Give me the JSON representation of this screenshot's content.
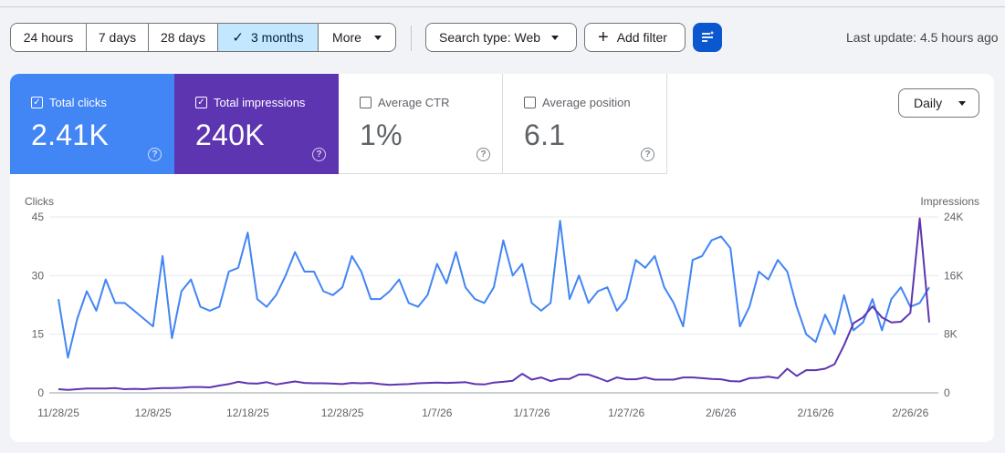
{
  "toolbar": {
    "date_ranges": [
      "24 hours",
      "7 days",
      "28 days",
      "3 months",
      "More"
    ],
    "selected_range": "3 months",
    "search_type": "Search type: Web",
    "add_filter": "Add filter",
    "filter_icon": "tune-icon",
    "last_update": "Last update: 4.5 hours ago"
  },
  "metrics": [
    {
      "label": "Total clicks",
      "value": "2.41K",
      "checked": true,
      "color": "#4285f4"
    },
    {
      "label": "Total impressions",
      "value": "240K",
      "checked": true,
      "color": "#5e35b1"
    },
    {
      "label": "Average CTR",
      "value": "1%",
      "checked": false
    },
    {
      "label": "Average position",
      "value": "6.1",
      "checked": false
    }
  ],
  "granularity": "Daily",
  "chart_data": {
    "type": "line",
    "ylabel": "Clicks",
    "y2label": "Impressions",
    "ylim": [
      0,
      45
    ],
    "y2lim": [
      0,
      24000
    ],
    "yticks": [
      "0",
      "15",
      "30",
      "45"
    ],
    "y2ticks": [
      "0",
      "8K",
      "16K",
      "24K"
    ],
    "x_tick_labels": [
      "11/28/25",
      "12/8/25",
      "12/18/25",
      "12/28/25",
      "1/7/26",
      "1/17/26",
      "1/27/26",
      "2/6/26",
      "2/16/26",
      "2/26/26"
    ],
    "start_date": "11/28/25",
    "grid": true,
    "series": [
      {
        "name": "Clicks",
        "axis": "left",
        "color": "#4285f4",
        "values": [
          24,
          9,
          19,
          26,
          21,
          29,
          23,
          23,
          21,
          19,
          17,
          35,
          14,
          26,
          29,
          22,
          21,
          22,
          31,
          32,
          41,
          24,
          22,
          25,
          30,
          36,
          31,
          31,
          26,
          25,
          27,
          35,
          31,
          24,
          24,
          26,
          29,
          23,
          22,
          25,
          33,
          28,
          36,
          27,
          24,
          23,
          27,
          39,
          30,
          33,
          23,
          21,
          23,
          44,
          24,
          30,
          23,
          26,
          27,
          21,
          24,
          34,
          32,
          35,
          27,
          23,
          17,
          34,
          35,
          39,
          40,
          37,
          17,
          22,
          31,
          29,
          34,
          31,
          22,
          15,
          13,
          20,
          15,
          25,
          16,
          18,
          24,
          16,
          24,
          27,
          22,
          23,
          27
        ]
      },
      {
        "name": "Impressions",
        "axis": "right",
        "color": "#5e35b1",
        "values": [
          500,
          400,
          500,
          600,
          600,
          600,
          650,
          500,
          550,
          500,
          600,
          650,
          650,
          700,
          800,
          800,
          750,
          1000,
          1200,
          1500,
          1300,
          1250,
          1450,
          1150,
          1350,
          1550,
          1350,
          1300,
          1300,
          1250,
          1200,
          1350,
          1300,
          1350,
          1200,
          1100,
          1150,
          1200,
          1300,
          1350,
          1400,
          1350,
          1400,
          1450,
          1200,
          1150,
          1400,
          1500,
          1650,
          2600,
          1800,
          2100,
          1600,
          1900,
          1900,
          2500,
          2500,
          2050,
          1550,
          2100,
          1850,
          1850,
          2100,
          1800,
          1800,
          1800,
          2100,
          2100,
          2000,
          1900,
          1850,
          1600,
          1550,
          2000,
          2050,
          2200,
          2000,
          3300,
          2300,
          3100,
          3100,
          3300,
          3900,
          6500,
          9500,
          10300,
          11800,
          10300,
          9600,
          9700,
          10900,
          23800,
          9600
        ]
      }
    ]
  }
}
